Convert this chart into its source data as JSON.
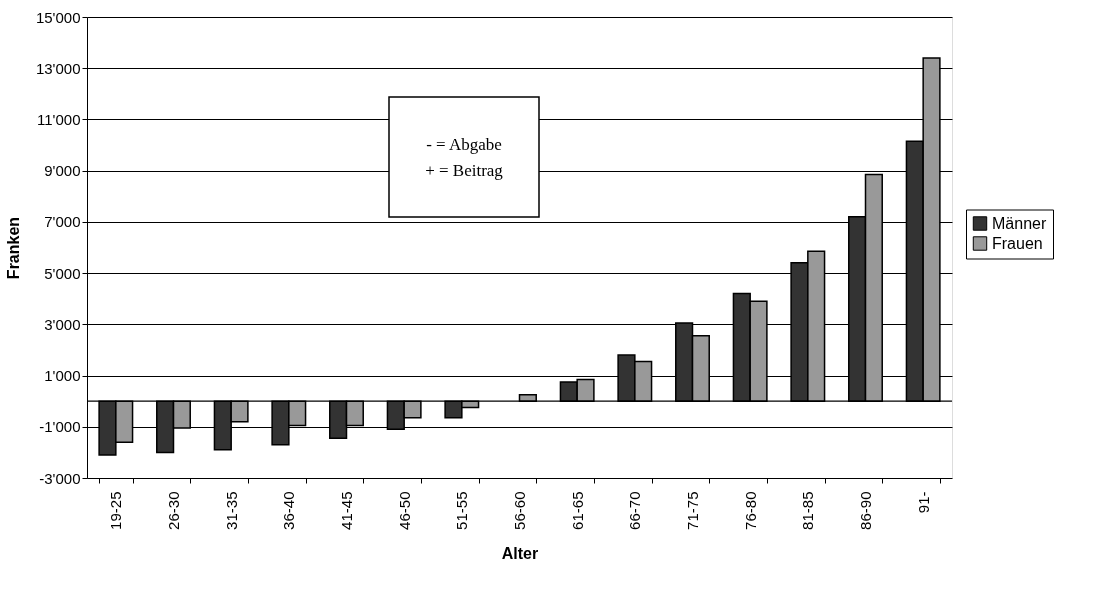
{
  "chart_data": {
    "type": "bar",
    "xlabel": "Alter",
    "ylabel": "Franken",
    "categories": [
      "19-25",
      "26-30",
      "31-35",
      "36-40",
      "41-45",
      "46-50",
      "51-55",
      "56-60",
      "61-65",
      "66-70",
      "71-75",
      "76-80",
      "81-85",
      "86-90",
      "91-"
    ],
    "series": [
      {
        "name": "Männer",
        "color": "#333333",
        "values": [
          -2100,
          -2000,
          -1900,
          -1700,
          -1450,
          -1100,
          -650,
          null,
          750,
          1800,
          3050,
          4200,
          5400,
          7200,
          10150
        ]
      },
      {
        "name": "Frauen",
        "color": "#999999",
        "values": [
          -1600,
          -1050,
          -800,
          -950,
          -950,
          -650,
          -250,
          250,
          850,
          1550,
          2550,
          3900,
          5850,
          8850,
          13400
        ]
      }
    ],
    "ylim": [
      -3000,
      15000
    ],
    "yticks": [
      {
        "value": -3000,
        "label": "-3'000"
      },
      {
        "value": -1000,
        "label": "-1'000"
      },
      {
        "value": 1000,
        "label": "1'000"
      },
      {
        "value": 3000,
        "label": "3'000"
      },
      {
        "value": 5000,
        "label": "5'000"
      },
      {
        "value": 7000,
        "label": "7'000"
      },
      {
        "value": 9000,
        "label": "9'000"
      },
      {
        "value": 11000,
        "label": "11'000"
      },
      {
        "value": 13000,
        "label": "13'000"
      },
      {
        "value": 15000,
        "label": "15'000"
      }
    ],
    "grid": "y",
    "legend": "right",
    "annotations": [
      "- = Abgabe\n+ = Beitrag"
    ]
  }
}
